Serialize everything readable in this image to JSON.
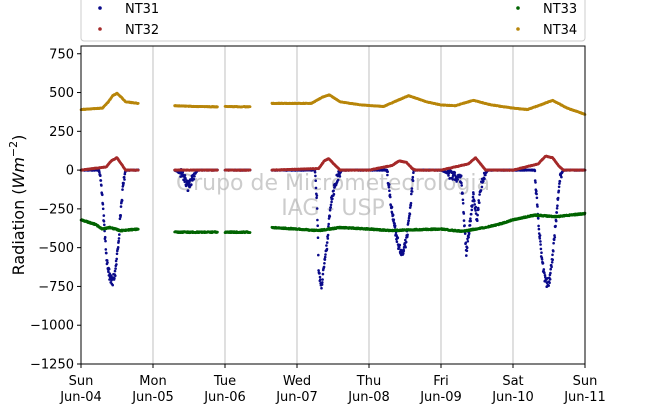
{
  "chart_data": {
    "type": "scatter",
    "title": "",
    "xlabel": "",
    "ylabel": "Radiation (Wm^-2)",
    "ylabel_parts": {
      "main": "Radiation (",
      "italic": "Wm",
      "sup": "−2",
      "close": ")"
    },
    "ylim": [
      -1250,
      800
    ],
    "yticks": [
      750,
      500,
      250,
      0,
      -250,
      -500,
      -750,
      -1000,
      -1250
    ],
    "ytick_labels": [
      "750",
      "500",
      "250",
      "0",
      "−250",
      "−500",
      "−750",
      "−1000",
      "−1250"
    ],
    "xlim": [
      0,
      7
    ],
    "xticks": [
      {
        "x": 0,
        "line1": "Sun",
        "line2": "Jun-04"
      },
      {
        "x": 1,
        "line1": "Mon",
        "line2": "Jun-05"
      },
      {
        "x": 2,
        "line1": "Tue",
        "line2": "Jun-06"
      },
      {
        "x": 3,
        "line1": "Wed",
        "line2": "Jun-07"
      },
      {
        "x": 4,
        "line1": "Thu",
        "line2": "Jun-08"
      },
      {
        "x": 5,
        "line1": "Fri",
        "line2": "Jun-09"
      },
      {
        "x": 6,
        "line1": "Sat",
        "line2": "Jun-10"
      },
      {
        "x": 7,
        "line1": "Sun",
        "line2": "Jun-11"
      }
    ],
    "grid": "vertical",
    "legend_position": "top",
    "watermark": [
      "Grupo de Micrometeorologia",
      "IAG - USP"
    ],
    "data_gaps": [
      [
        0.8,
        1.3
      ],
      [
        1.9,
        2.0
      ],
      [
        2.35,
        2.65
      ]
    ],
    "series": [
      {
        "name": "NT31",
        "color": "#0a0a8a",
        "points": [
          [
            0.0,
            0
          ],
          [
            0.25,
            0
          ],
          [
            0.28,
            -80
          ],
          [
            0.32,
            -350
          ],
          [
            0.36,
            -580
          ],
          [
            0.4,
            -690
          ],
          [
            0.44,
            -720
          ],
          [
            0.48,
            -650
          ],
          [
            0.52,
            -460
          ],
          [
            0.56,
            -220
          ],
          [
            0.6,
            -40
          ],
          [
            0.62,
            0
          ],
          [
            0.8,
            0
          ],
          [
            1.3,
            0
          ],
          [
            1.42,
            -30
          ],
          [
            1.48,
            -110
          ],
          [
            1.56,
            -40
          ],
          [
            1.62,
            0
          ],
          [
            1.9,
            0
          ],
          [
            2.0,
            0
          ],
          [
            2.35,
            0
          ],
          [
            2.65,
            0
          ],
          [
            3.25,
            0
          ],
          [
            3.28,
            -220
          ],
          [
            3.3,
            -620
          ],
          [
            3.33,
            -760
          ],
          [
            3.37,
            -650
          ],
          [
            3.42,
            -470
          ],
          [
            3.47,
            -200
          ],
          [
            3.55,
            -60
          ],
          [
            3.62,
            0
          ],
          [
            4.0,
            0
          ],
          [
            4.25,
            0
          ],
          [
            4.3,
            -200
          ],
          [
            4.38,
            -430
          ],
          [
            4.45,
            -550
          ],
          [
            4.52,
            -450
          ],
          [
            4.58,
            -220
          ],
          [
            4.62,
            0
          ],
          [
            5.0,
            0
          ],
          [
            5.28,
            -60
          ],
          [
            5.32,
            -300
          ],
          [
            5.35,
            -540
          ],
          [
            5.4,
            -350
          ],
          [
            5.45,
            -150
          ],
          [
            5.5,
            -320
          ],
          [
            5.55,
            -120
          ],
          [
            5.6,
            -30
          ],
          [
            5.65,
            0
          ],
          [
            6.0,
            0
          ],
          [
            6.3,
            0
          ],
          [
            6.35,
            -320
          ],
          [
            6.4,
            -570
          ],
          [
            6.45,
            -720
          ],
          [
            6.5,
            -730
          ],
          [
            6.55,
            -560
          ],
          [
            6.6,
            -300
          ],
          [
            6.66,
            -30
          ],
          [
            6.7,
            0
          ],
          [
            7.0,
            0
          ]
        ]
      },
      {
        "name": "NT32",
        "color": "#a52a2a",
        "points": [
          [
            0.0,
            0
          ],
          [
            0.35,
            20
          ],
          [
            0.42,
            60
          ],
          [
            0.5,
            80
          ],
          [
            0.56,
            40
          ],
          [
            0.62,
            0
          ],
          [
            0.8,
            0
          ],
          [
            1.3,
            0
          ],
          [
            1.9,
            0
          ],
          [
            2.0,
            0
          ],
          [
            2.35,
            0
          ],
          [
            2.65,
            0
          ],
          [
            3.3,
            10
          ],
          [
            3.38,
            60
          ],
          [
            3.44,
            75
          ],
          [
            3.52,
            35
          ],
          [
            3.6,
            0
          ],
          [
            4.0,
            0
          ],
          [
            4.32,
            30
          ],
          [
            4.42,
            60
          ],
          [
            4.52,
            50
          ],
          [
            4.6,
            10
          ],
          [
            4.65,
            0
          ],
          [
            5.0,
            0
          ],
          [
            5.38,
            40
          ],
          [
            5.48,
            80
          ],
          [
            5.55,
            40
          ],
          [
            5.62,
            0
          ],
          [
            6.0,
            0
          ],
          [
            6.35,
            40
          ],
          [
            6.45,
            90
          ],
          [
            6.55,
            80
          ],
          [
            6.63,
            30
          ],
          [
            6.7,
            0
          ],
          [
            7.0,
            0
          ]
        ]
      },
      {
        "name": "NT33",
        "color": "#006400",
        "points": [
          [
            0.0,
            -320
          ],
          [
            0.2,
            -350
          ],
          [
            0.3,
            -380
          ],
          [
            0.4,
            -370
          ],
          [
            0.55,
            -390
          ],
          [
            0.8,
            -380
          ],
          [
            1.3,
            -400
          ],
          [
            1.6,
            -400
          ],
          [
            1.9,
            -400
          ],
          [
            2.0,
            -400
          ],
          [
            2.35,
            -400
          ],
          [
            2.65,
            -370
          ],
          [
            3.0,
            -380
          ],
          [
            3.3,
            -390
          ],
          [
            3.6,
            -370
          ],
          [
            4.0,
            -380
          ],
          [
            4.3,
            -390
          ],
          [
            4.6,
            -385
          ],
          [
            5.0,
            -380
          ],
          [
            5.3,
            -395
          ],
          [
            5.6,
            -370
          ],
          [
            5.8,
            -350
          ],
          [
            6.0,
            -320
          ],
          [
            6.3,
            -290
          ],
          [
            6.6,
            -300
          ],
          [
            7.0,
            -280
          ]
        ]
      },
      {
        "name": "NT34",
        "color": "#b8860b",
        "points": [
          [
            0.0,
            390
          ],
          [
            0.3,
            400
          ],
          [
            0.38,
            440
          ],
          [
            0.44,
            480
          ],
          [
            0.5,
            495
          ],
          [
            0.56,
            470
          ],
          [
            0.62,
            440
          ],
          [
            0.8,
            430
          ],
          [
            1.3,
            415
          ],
          [
            1.6,
            410
          ],
          [
            1.9,
            408
          ],
          [
            2.0,
            410
          ],
          [
            2.35,
            408
          ],
          [
            2.65,
            430
          ],
          [
            3.2,
            430
          ],
          [
            3.35,
            470
          ],
          [
            3.45,
            485
          ],
          [
            3.6,
            440
          ],
          [
            3.9,
            420
          ],
          [
            4.2,
            410
          ],
          [
            4.35,
            440
          ],
          [
            4.55,
            480
          ],
          [
            4.8,
            440
          ],
          [
            5.0,
            420
          ],
          [
            5.2,
            415
          ],
          [
            5.45,
            450
          ],
          [
            5.7,
            420
          ],
          [
            6.0,
            400
          ],
          [
            6.2,
            390
          ],
          [
            6.38,
            420
          ],
          [
            6.55,
            450
          ],
          [
            6.75,
            400
          ],
          [
            7.0,
            360
          ]
        ]
      }
    ]
  }
}
